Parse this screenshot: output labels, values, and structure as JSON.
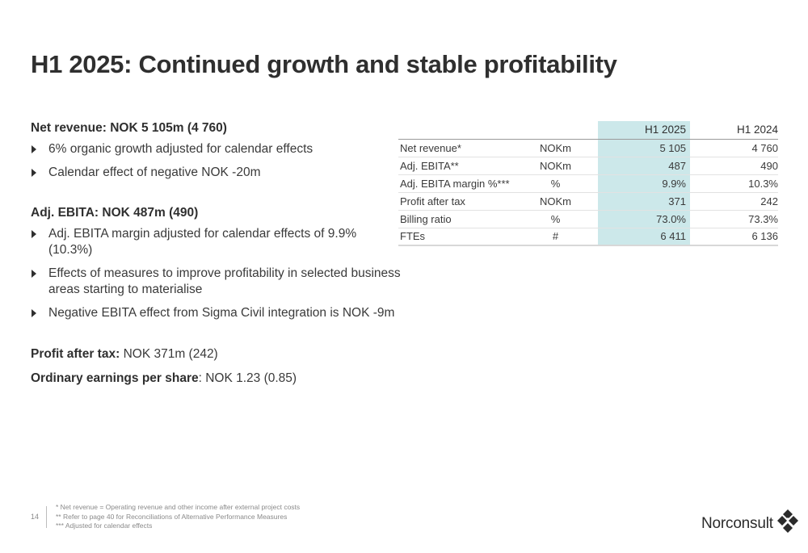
{
  "title": "H1 2025: Continued growth and stable profitability",
  "net_revenue": {
    "heading": "Net revenue: NOK 5 105m (4 760)",
    "bullets": [
      "6% organic growth adjusted for calendar effects",
      "Calendar effect of negative NOK -20m"
    ]
  },
  "adj_ebita": {
    "heading": "Adj. EBITA: NOK 487m (490)",
    "bullets": [
      "Adj. EBITA margin adjusted for calendar effects of 9.9% (10.3%)",
      "Effects of measures to improve profitability in selected business areas starting to materialise",
      "Negative EBITA effect from Sigma Civil integration is NOK -9m"
    ]
  },
  "profit": {
    "label": "Profit after tax:",
    "value": "NOK 371m (242)"
  },
  "eps": {
    "label": "Ordinary earnings per share",
    "value": ": NOK 1.23 (0.85)"
  },
  "table": {
    "headers": [
      "",
      "",
      "H1 2025",
      "H1 2024"
    ],
    "rows": [
      [
        "Net revenue*",
        "NOKm",
        "5 105",
        "4 760"
      ],
      [
        "Adj. EBITA**",
        "NOKm",
        "487",
        "490"
      ],
      [
        "Adj. EBITA margin %***",
        "%",
        "9.9%",
        "10.3%"
      ],
      [
        "Profit after tax",
        "NOKm",
        "371",
        "242"
      ],
      [
        "Billing ratio",
        "%",
        "73.0%",
        "73.3%"
      ],
      [
        "FTEs",
        "#",
        "6 411",
        "6 136"
      ]
    ],
    "highlight_color": "#cce8ea"
  },
  "footer": {
    "page": "14",
    "notes": [
      "*  Net revenue = Operating revenue and other income after external project costs",
      "** Refer to page 40 for Reconciliations of Alternative Performance Measures",
      "*** Adjusted for calendar effects"
    ]
  },
  "logo": {
    "text": "Norconsult",
    "icon": "norconsult-diamond-icon"
  }
}
